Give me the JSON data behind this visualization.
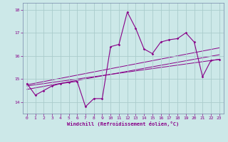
{
  "title": "",
  "xlabel": "Windchill (Refroidissement éolien,°C)",
  "ylabel": "",
  "bg_color": "#cce8e8",
  "grid_color": "#aacccc",
  "line_color": "#880088",
  "spine_color": "#7788aa",
  "xlim": [
    -0.5,
    23.5
  ],
  "ylim": [
    13.5,
    18.3
  ],
  "yticks": [
    14,
    15,
    16,
    17,
    18
  ],
  "xticks": [
    0,
    1,
    2,
    3,
    4,
    5,
    6,
    7,
    8,
    9,
    10,
    11,
    12,
    13,
    14,
    15,
    16,
    17,
    18,
    19,
    20,
    21,
    22,
    23
  ],
  "series": [
    [
      0,
      14.8
    ],
    [
      1,
      14.3
    ],
    [
      2,
      14.5
    ],
    [
      3,
      14.7
    ],
    [
      4,
      14.8
    ],
    [
      5,
      14.85
    ],
    [
      6,
      14.9
    ],
    [
      7,
      13.8
    ],
    [
      8,
      14.15
    ],
    [
      9,
      14.15
    ],
    [
      10,
      16.4
    ],
    [
      11,
      16.5
    ],
    [
      12,
      17.9
    ],
    [
      13,
      17.2
    ],
    [
      14,
      16.3
    ],
    [
      15,
      16.1
    ],
    [
      16,
      16.6
    ],
    [
      17,
      16.7
    ],
    [
      18,
      16.75
    ],
    [
      19,
      17.0
    ],
    [
      20,
      16.6
    ],
    [
      21,
      15.1
    ],
    [
      22,
      15.8
    ],
    [
      23,
      15.85
    ]
  ],
  "reg_lines": [
    {
      "x": [
        0,
        23
      ],
      "y": [
        14.55,
        16.05
      ]
    },
    {
      "x": [
        0,
        23
      ],
      "y": [
        14.7,
        15.85
      ]
    },
    {
      "x": [
        0,
        23
      ],
      "y": [
        14.75,
        16.35
      ]
    }
  ]
}
